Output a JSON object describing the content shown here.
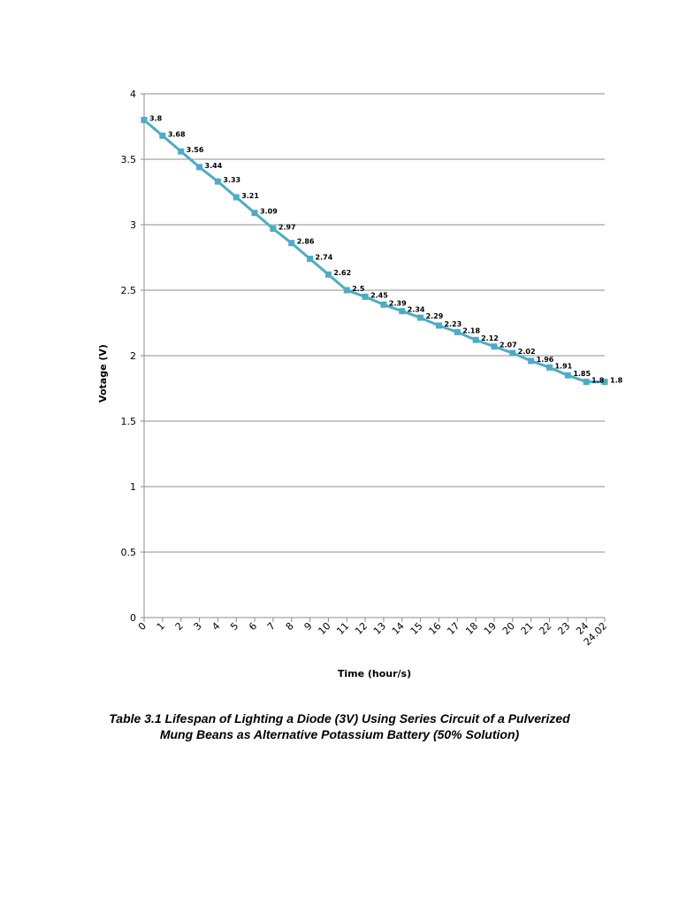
{
  "chart_data": {
    "type": "line",
    "title": "",
    "xlabel": "Time (hour/s)",
    "ylabel": "Votage  (V)",
    "ylim": [
      0,
      4
    ],
    "yticks": [
      0,
      0.5,
      1,
      1.5,
      2,
      2.5,
      3,
      3.5,
      4
    ],
    "ytick_labels": [
      "0",
      "0.5",
      "1",
      "1.5",
      "2",
      "2.5",
      "3",
      "3.5",
      "4"
    ],
    "grid": true,
    "legend": "none",
    "series_color": "#4bacc6",
    "categories": [
      "0",
      "1",
      "2",
      "3",
      "4",
      "5",
      "6",
      "7",
      "8",
      "9",
      "10",
      "11",
      "12",
      "13",
      "14",
      "15",
      "16",
      "17",
      "18",
      "19",
      "20",
      "21",
      "22",
      "23",
      "24",
      "24.02"
    ],
    "values": [
      3.8,
      3.68,
      3.56,
      3.44,
      3.33,
      3.21,
      3.09,
      2.97,
      2.86,
      2.74,
      2.62,
      2.5,
      2.45,
      2.39,
      2.34,
      2.29,
      2.23,
      2.18,
      2.12,
      2.07,
      2.02,
      1.96,
      1.91,
      1.85,
      1.8,
      1.8
    ],
    "data_labels": [
      "3.8",
      "3.68",
      "3.56",
      "3.44",
      "3.33",
      "3.21",
      "3.09",
      "2.97",
      "2.86",
      "2.74",
      "2.62",
      "2.5",
      "2.45",
      "2.39",
      "2.34",
      "2.29",
      "2.23",
      "2.18",
      "2.12",
      "2.07",
      "2.02",
      "1.96",
      "1.91",
      "1.85",
      "1.8",
      "1.8"
    ]
  },
  "caption": {
    "line1": "Table 3.1 Lifespan of Lighting a Diode (3V) Using Series Circuit of a Pulverized",
    "line2": "Mung Beans as Alternative Potassium Battery (50% Solution)"
  }
}
